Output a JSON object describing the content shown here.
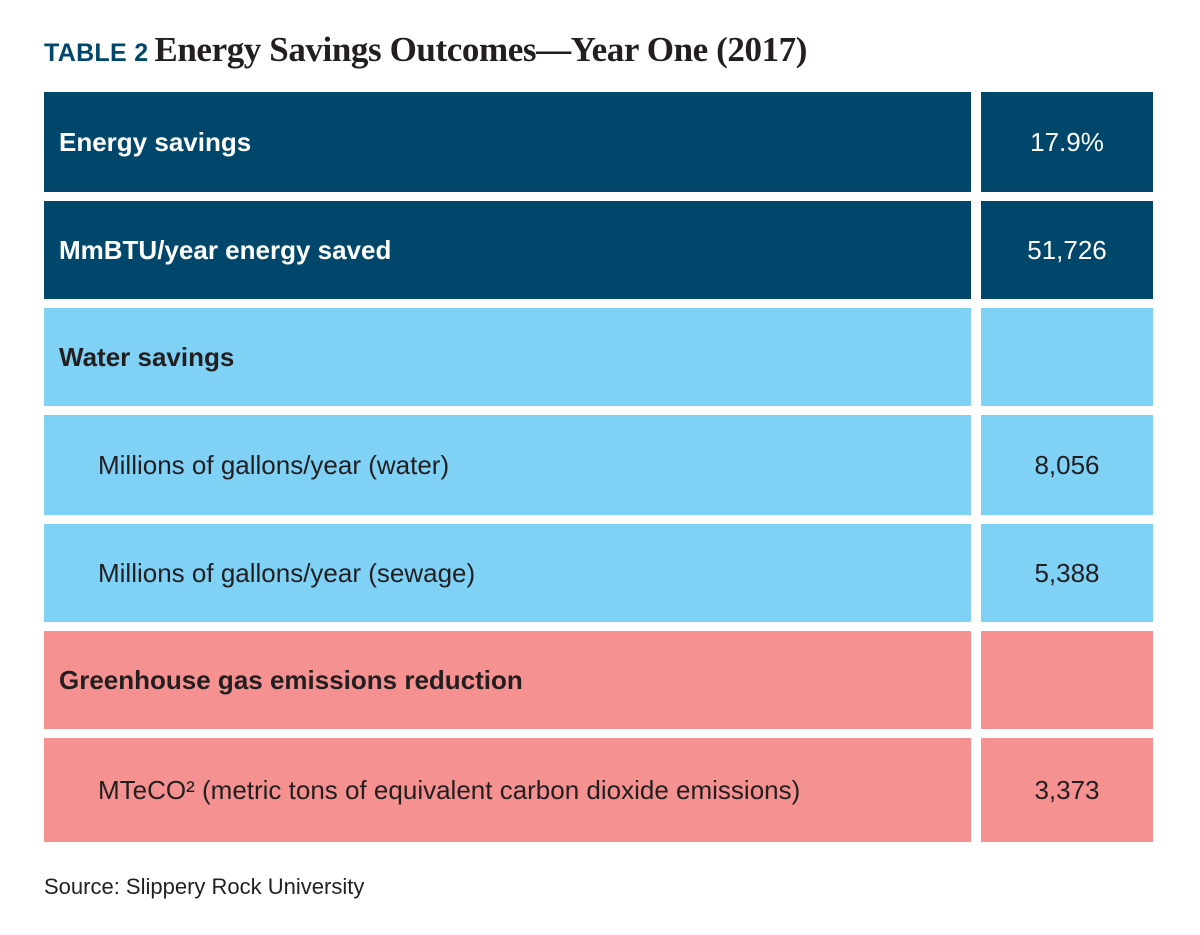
{
  "title": {
    "label": "TABLE 2",
    "text": "Energy Savings Outcomes—Year One (2017)"
  },
  "colors": {
    "navy": "#00476b",
    "light_blue": "#7fd1f6",
    "pink": "#f69191"
  },
  "rows": [
    {
      "label": "Energy savings",
      "value": "17.9%"
    },
    {
      "label": "MmBTU/year energy saved",
      "value": "51,726"
    },
    {
      "label": "Water savings",
      "value": ""
    },
    {
      "label": "Millions of gallons/year (water)",
      "value": "8,056"
    },
    {
      "label": "Millions of gallons/year (sewage)",
      "value": "5,388"
    },
    {
      "label": "Greenhouse gas emissions reduction",
      "value": ""
    },
    {
      "label": "MTeCO² (metric tons of equivalent carbon dioxide emissions)",
      "value": "3,373"
    }
  ],
  "source": "Source: Slippery Rock University"
}
